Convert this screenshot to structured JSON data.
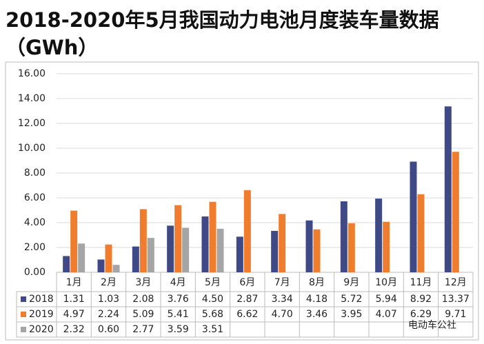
{
  "chart_data": {
    "type": "bar",
    "title": "2018-2020年5月我国动力电池月度装车量数据",
    "subtitle": "（GWh）",
    "watermark": "电动车公社",
    "categories": [
      "1月",
      "2月",
      "3月",
      "4月",
      "5月",
      "6月",
      "7月",
      "8月",
      "9月",
      "10月",
      "11月",
      "12月"
    ],
    "series": [
      {
        "name": "2018",
        "color": "#3f4986",
        "values": [
          1.31,
          1.03,
          2.08,
          3.76,
          4.5,
          2.87,
          3.34,
          4.18,
          5.72,
          5.94,
          8.92,
          13.37
        ],
        "value_labels": [
          "1.31",
          "1.03",
          "2.08",
          "3.76",
          "4.50",
          "2.87",
          "3.34",
          "4.18",
          "5.72",
          "5.94",
          "8.92",
          "13.37"
        ]
      },
      {
        "name": "2019",
        "color": "#f07d2e",
        "values": [
          4.97,
          2.24,
          5.09,
          5.41,
          5.68,
          6.62,
          4.7,
          3.46,
          3.95,
          4.07,
          6.29,
          9.71
        ],
        "value_labels": [
          "4.97",
          "2.24",
          "5.09",
          "5.41",
          "5.68",
          "6.62",
          "4.70",
          "3.46",
          "3.95",
          "4.07",
          "6.29",
          "9.71"
        ]
      },
      {
        "name": "2020",
        "color": "#a5a5a5",
        "values": [
          2.32,
          0.6,
          2.77,
          3.59,
          3.51,
          null,
          null,
          null,
          null,
          null,
          null,
          null
        ],
        "value_labels": [
          "2.32",
          "0.60",
          "2.77",
          "3.59",
          "3.51",
          null,
          null,
          null,
          null,
          null,
          null,
          null
        ]
      }
    ],
    "ylim": [
      0,
      16
    ],
    "yticks": [
      {
        "value": 0,
        "label": "0.00"
      },
      {
        "value": 2,
        "label": "2.00"
      },
      {
        "value": 4,
        "label": "4.00"
      },
      {
        "value": 6,
        "label": "6.00"
      },
      {
        "value": 8,
        "label": "8.00"
      },
      {
        "value": 10,
        "label": "10.00"
      },
      {
        "value": 12,
        "label": "12.00"
      },
      {
        "value": 14,
        "label": "14.00"
      },
      {
        "value": 16,
        "label": "16.00"
      }
    ],
    "grid": true
  }
}
